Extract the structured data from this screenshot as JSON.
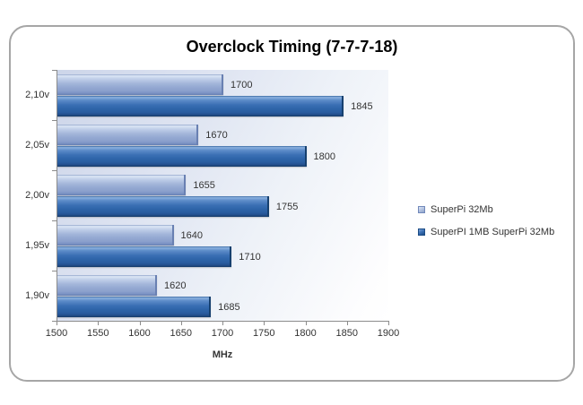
{
  "chart_data": {
    "type": "bar",
    "orientation": "horizontal",
    "title": "Overclock Timing (7-7-7-18)",
    "xlabel": "MHz",
    "categories": [
      "2,10v",
      "2,05v",
      "2,00v",
      "1,95v",
      "1,90v"
    ],
    "series": [
      {
        "name": "SuperPi 32Mb",
        "color": "#9db1d6",
        "values": [
          1700,
          1670,
          1655,
          1640,
          1620
        ]
      },
      {
        "name": "SuperPI 1MB SuperPi 32Mb",
        "color": "#2d62a8",
        "values": [
          1845,
          1800,
          1755,
          1710,
          1685
        ]
      }
    ],
    "xlim": [
      1500,
      1900
    ],
    "x_ticks": [
      1500,
      1550,
      1600,
      1650,
      1700,
      1750,
      1800,
      1850,
      1900
    ],
    "legend_position": "right",
    "grid": false,
    "data_labels": true
  },
  "colors": {
    "series_light": "#9db1d6",
    "series_dark": "#2d62a8",
    "axis": "#8c8c8c",
    "text": "#333333",
    "frame_border": "#a6a6a6",
    "plot_bg_top_left": "#ccd5e9",
    "plot_bg_bottom_right": "#ffffff"
  }
}
